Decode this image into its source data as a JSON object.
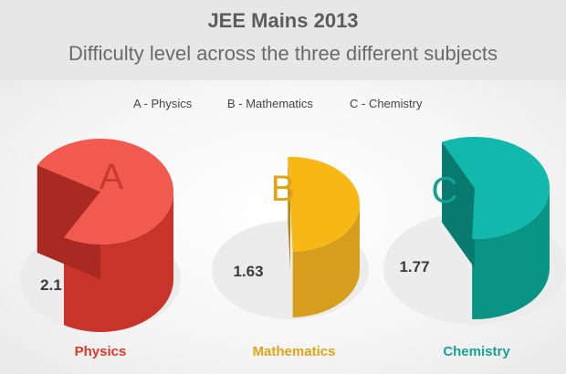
{
  "title": "JEE Mains 2013",
  "subtitle": "Difficulty level  across the three different subjects",
  "legend": [
    "A - Physics",
    "B - Mathematics",
    "C - Chemistry"
  ],
  "colors": {
    "physics": "#f25a4f",
    "mathematics": "#f7b715",
    "chemistry": "#12b8ab"
  },
  "chart_data": {
    "type": "pie",
    "title": "JEE Mains 2013",
    "subtitle": "Difficulty level  across the three different subjects",
    "series": [
      {
        "letter": "A",
        "name": "Physics",
        "value": 2.1,
        "label": "2.1"
      },
      {
        "letter": "B",
        "name": "Mathematics",
        "value": 1.63,
        "label": "1.63"
      },
      {
        "letter": "C",
        "name": "Chemistry",
        "value": 1.77,
        "label": "1.77"
      }
    ]
  }
}
